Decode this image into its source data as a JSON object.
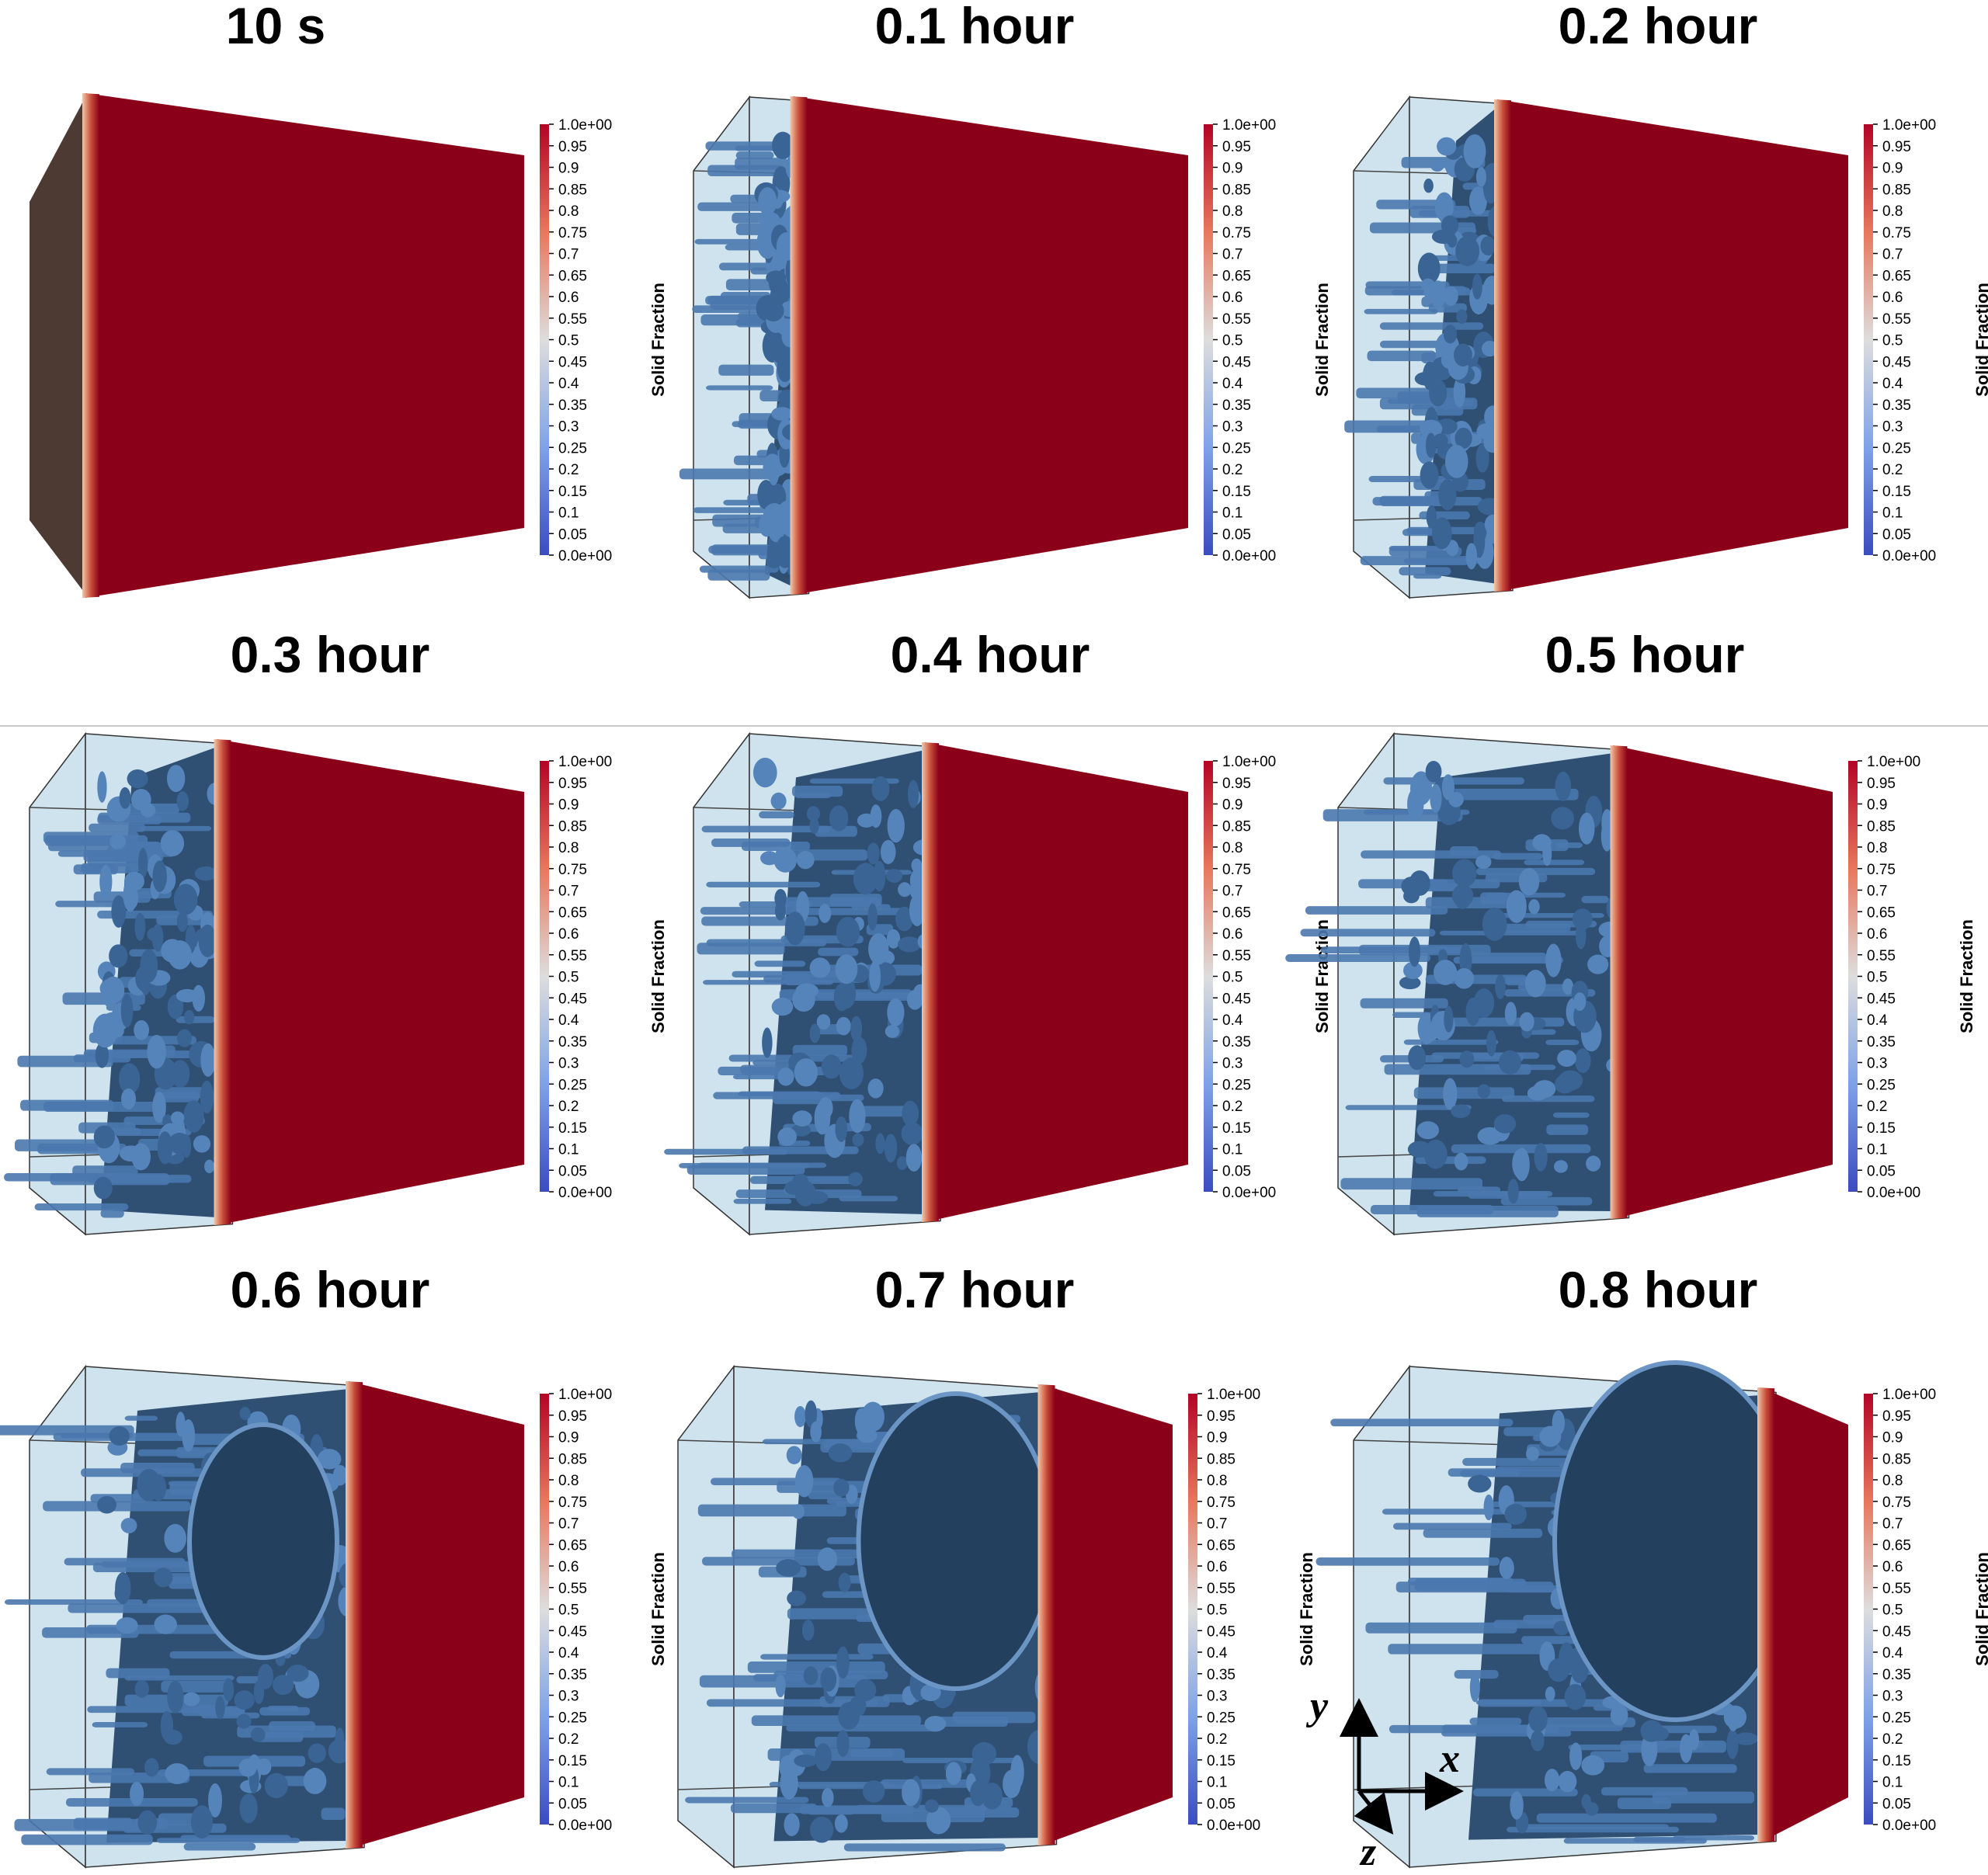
{
  "colorbar": {
    "title": "Solid Fraction",
    "ticks": [
      "1.0e+00",
      "0.95",
      "0.9",
      "0.85",
      "0.8",
      "0.75",
      "0.7",
      "0.65",
      "0.6",
      "0.55",
      "0.5",
      "0.45",
      "0.4",
      "0.35",
      "0.3",
      "0.25",
      "0.2",
      "0.15",
      "0.1",
      "0.05",
      "0.0e+00"
    ],
    "colors": {
      "low": "#3b4cc0",
      "mid": "#dddddd",
      "high": "#b40426",
      "solid": "#8b0018",
      "liquid": "#cfe3ee",
      "dendrite": "#4a78ae"
    }
  },
  "panels": [
    {
      "title": "10 s",
      "front_fraction": 0.0
    },
    {
      "title": "0.1 hour",
      "front_fraction": 0.1
    },
    {
      "title": "0.2 hour",
      "front_fraction": 0.2
    },
    {
      "title": "0.3 hour",
      "front_fraction": 0.3
    },
    {
      "title": "0.4 hour",
      "front_fraction": 0.4
    },
    {
      "title": "0.5 hour",
      "front_fraction": 0.5
    },
    {
      "title": "0.6 hour",
      "front_fraction": 0.6
    },
    {
      "title": "0.7 hour",
      "front_fraction": 0.7
    },
    {
      "title": "0.8 hour",
      "front_fraction": 0.8
    }
  ],
  "axes": {
    "y": "y",
    "x": "x",
    "z": "z"
  }
}
